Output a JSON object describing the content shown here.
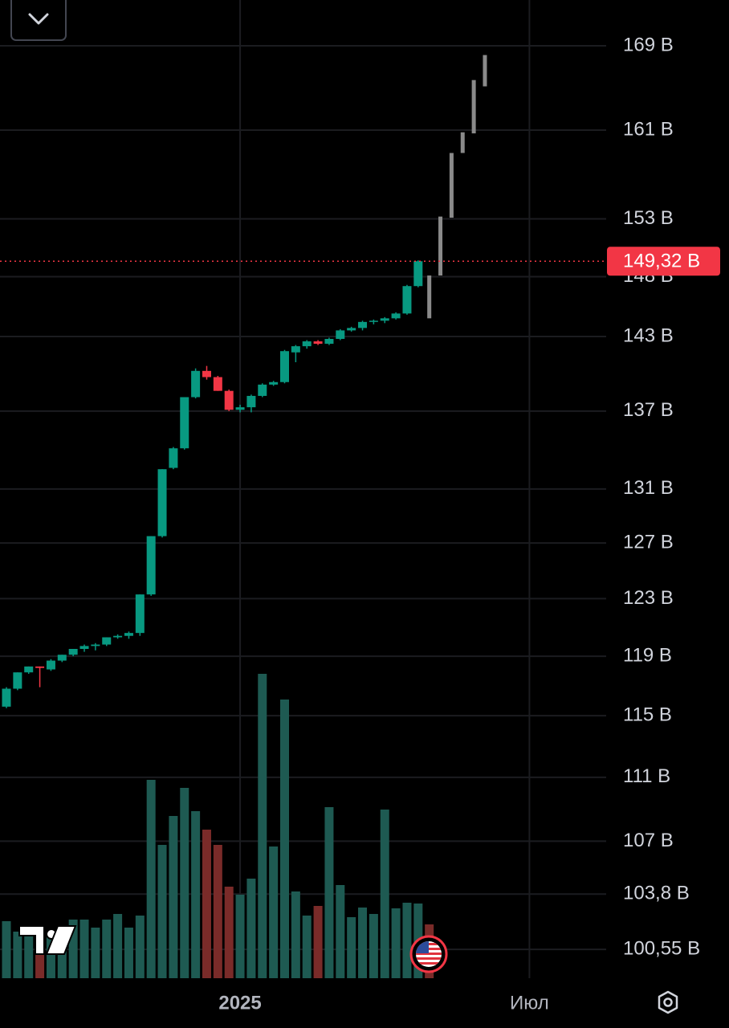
{
  "chart_data": {
    "type": "candlestick",
    "log_scale": true,
    "grid": true,
    "categories": [
      null,
      null,
      null,
      null,
      null,
      null,
      null,
      null,
      null,
      null,
      null,
      null,
      null,
      null,
      null,
      null,
      null,
      null,
      null,
      null,
      null,
      "2025",
      null,
      null,
      null,
      null,
      null,
      null,
      null,
      null,
      null,
      null,
      null,
      null,
      null,
      null,
      null,
      null,
      null,
      null,
      null,
      null,
      null,
      null,
      null,
      null,
      null,
      "Июл"
    ],
    "up_color": "#089981",
    "down_color": "#f23645",
    "open": [
      115.6,
      116.8,
      117.9,
      118.3,
      118.1,
      118.7,
      119.1,
      119.5,
      119.7,
      119.8,
      120.3,
      120.4,
      120.6,
      123.3,
      127.5,
      132.6,
      134.1,
      138.1,
      140.2,
      139.7,
      138.6,
      137.1,
      137.3,
      138.2,
      139.1,
      139.3,
      141.7,
      142.2,
      142.6,
      142.4,
      142.8,
      143.5,
      143.7,
      144.2,
      144.3,
      144.5,
      144.9,
      147.2,
      null,
      null,
      null,
      null,
      null,
      null,
      null,
      null,
      null,
      null
    ],
    "high": [
      116.9,
      117.9,
      118.3,
      118.3,
      118.8,
      119.1,
      119.5,
      119.8,
      119.9,
      120.3,
      120.5,
      120.7,
      123.3,
      127.5,
      132.5,
      134.2,
      138.1,
      140.4,
      140.6,
      139.8,
      138.7,
      137.5,
      138.3,
      139.2,
      139.4,
      141.9,
      142.3,
      142.7,
      142.7,
      142.9,
      143.6,
      143.8,
      144.3,
      144.4,
      144.6,
      145.0,
      147.3,
      149.4,
      null,
      null,
      null,
      null,
      null,
      null,
      null,
      null,
      null,
      null
    ],
    "low": [
      115.5,
      116.7,
      117.8,
      116.9,
      118.0,
      118.6,
      119.0,
      119.3,
      119.4,
      119.7,
      120.2,
      120.2,
      120.4,
      123.2,
      127.4,
      132.5,
      134.0,
      138.0,
      139.5,
      138.6,
      137.0,
      136.9,
      136.9,
      138.1,
      139.0,
      139.2,
      140.9,
      142.0,
      142.3,
      142.3,
      142.7,
      143.4,
      143.5,
      144.0,
      144.1,
      144.4,
      144.8,
      147.1,
      null,
      null,
      null,
      null,
      null,
      null,
      null,
      null,
      null,
      null
    ],
    "close": [
      116.8,
      117.9,
      118.3,
      118.2,
      118.7,
      119.1,
      119.5,
      119.7,
      119.8,
      120.3,
      120.4,
      120.6,
      123.3,
      127.5,
      132.5,
      134.1,
      138.1,
      140.2,
      139.7,
      138.6,
      137.1,
      137.3,
      138.2,
      139.1,
      139.3,
      141.8,
      142.2,
      142.6,
      142.4,
      142.8,
      143.5,
      143.7,
      144.2,
      144.3,
      144.5,
      144.9,
      147.2,
      149.32,
      null,
      null,
      null,
      null,
      null,
      null,
      null,
      null,
      null,
      null
    ],
    "projection": {
      "color": "#8a8a8a",
      "low": [
        null,
        null,
        null,
        null,
        null,
        null,
        null,
        null,
        null,
        null,
        null,
        null,
        null,
        null,
        null,
        null,
        null,
        null,
        null,
        null,
        null,
        null,
        null,
        null,
        null,
        null,
        null,
        null,
        null,
        null,
        null,
        null,
        null,
        null,
        null,
        null,
        null,
        null,
        144.5,
        148.1,
        153.1,
        158.9,
        160.7,
        165.1,
        null,
        null,
        null,
        null
      ],
      "high": [
        null,
        null,
        null,
        null,
        null,
        null,
        null,
        null,
        null,
        null,
        null,
        null,
        null,
        null,
        null,
        null,
        null,
        null,
        null,
        null,
        null,
        null,
        null,
        null,
        null,
        null,
        null,
        null,
        null,
        null,
        null,
        null,
        null,
        null,
        null,
        null,
        null,
        null,
        148.1,
        153.2,
        158.9,
        160.8,
        165.7,
        168.1,
        null,
        null,
        null,
        null
      ]
    },
    "volume": {
      "values": [
        71,
        58,
        58,
        53,
        58,
        58,
        73,
        73,
        63,
        73,
        80,
        63,
        78,
        247,
        166,
        202,
        237,
        208,
        185,
        166,
        114,
        104,
        124,
        379,
        164,
        347,
        108,
        78,
        90,
        213,
        116,
        76,
        88,
        80,
        210,
        87,
        94,
        93,
        67,
        null,
        null,
        null,
        null,
        null,
        null,
        null,
        null,
        null
      ],
      "colors": [
        "#1e5a52",
        "#1e5a52",
        "#1e5a52",
        "#7a2b29",
        "#1e5a52",
        "#1e5a52",
        "#1e5a52",
        "#1e5a52",
        "#1e5a52",
        "#1e5a52",
        "#1e5a52",
        "#1e5a52",
        "#1e5a52",
        "#1e5a52",
        "#1e5a52",
        "#1e5a52",
        "#1e5a52",
        "#1e5a52",
        "#7a2b29",
        "#7a2b29",
        "#7a2b29",
        "#1e5a52",
        "#1e5a52",
        "#1e5a52",
        "#1e5a52",
        "#1e5a52",
        "#1e5a52",
        "#1e5a52",
        "#7a2b29",
        "#1e5a52",
        "#1e5a52",
        "#1e5a52",
        "#1e5a52",
        "#1e5a52",
        "#1e5a52",
        "#1e5a52",
        "#1e5a52",
        "#1e5a52",
        "#7a2b29",
        null,
        null,
        null,
        null,
        null,
        null,
        null,
        null,
        null
      ]
    },
    "ylim": [
      98.9,
      173.5
    ],
    "yticks": [
      {
        "value": 169,
        "label": "169 B"
      },
      {
        "value": 161,
        "label": "161 B"
      },
      {
        "value": 153,
        "label": "153 B"
      },
      {
        "value": 148,
        "label": "148 B"
      },
      {
        "value": 143,
        "label": "143 B"
      },
      {
        "value": 137,
        "label": "137 B"
      },
      {
        "value": 131,
        "label": "131 B"
      },
      {
        "value": 127,
        "label": "127 B"
      },
      {
        "value": 123,
        "label": "123 B"
      },
      {
        "value": 119,
        "label": "119 B"
      },
      {
        "value": 115,
        "label": "115 B"
      },
      {
        "value": 111,
        "label": "111 B"
      },
      {
        "value": 107,
        "label": "107 B"
      },
      {
        "value": 103.8,
        "label": "103,8 B"
      },
      {
        "value": 100.55,
        "label": "100,55 B"
      }
    ],
    "last_price": {
      "value": 149.32,
      "label": "149,32 B",
      "color": "#f23645"
    }
  }
}
